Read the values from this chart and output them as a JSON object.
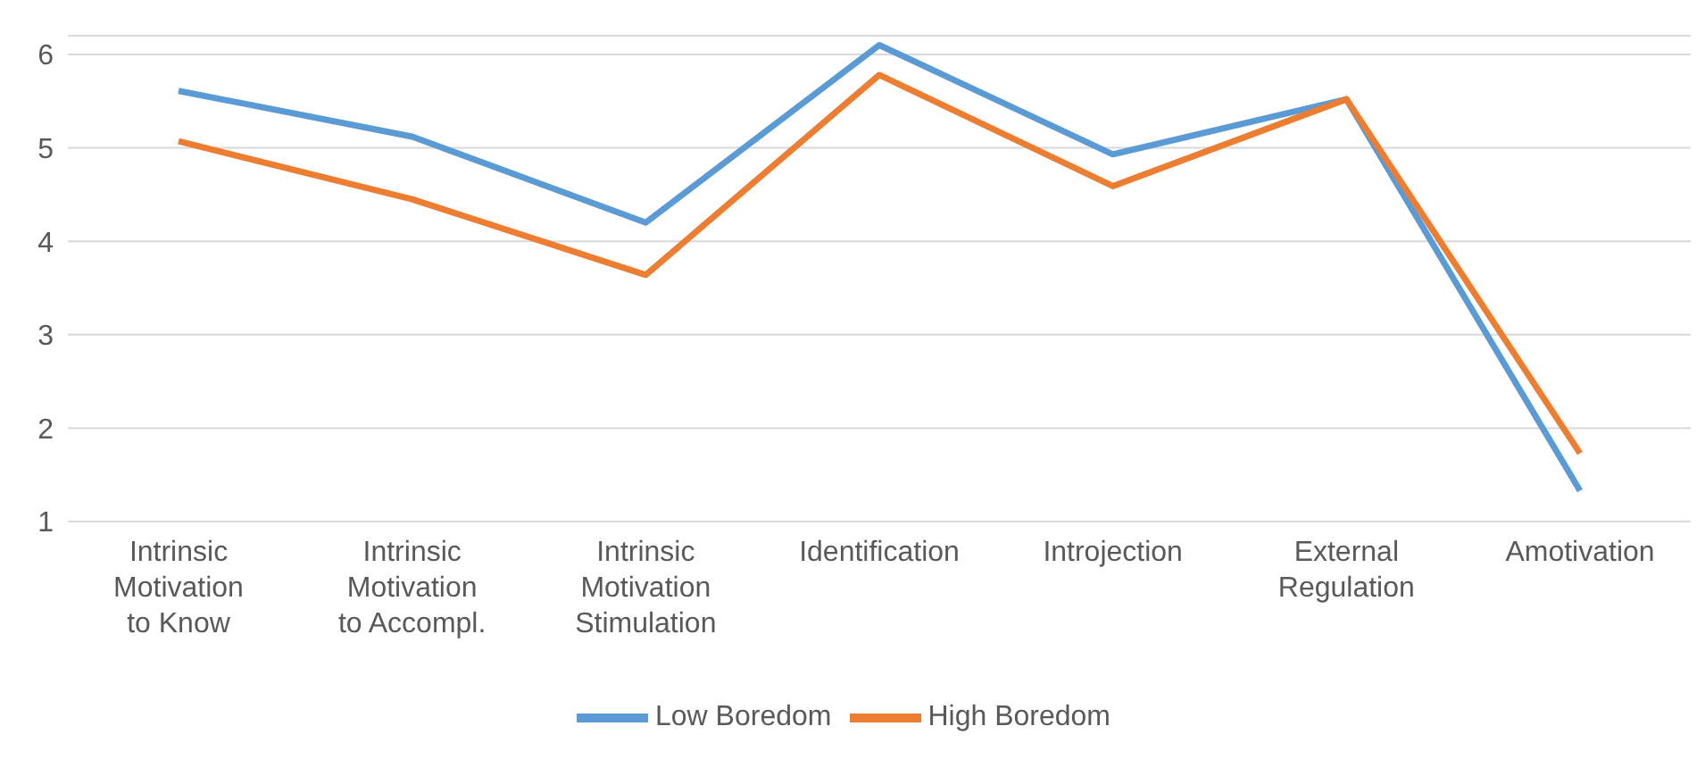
{
  "chart_data": {
    "type": "line",
    "categories": [
      "Intrinsic Motivation to Know",
      "Intrinsic Motivation to Accompl.",
      "Intrinsic Motivation Stimulation",
      "Identification",
      "Introjection",
      "External Regulation",
      "Amotivation"
    ],
    "series": [
      {
        "name": "Low Boredom",
        "color": "#5b9bd5",
        "values": [
          5.61,
          5.12,
          4.2,
          6.1,
          4.93,
          5.52,
          1.33
        ]
      },
      {
        "name": "High Boredom",
        "color": "#ed7d31",
        "values": [
          5.07,
          4.45,
          3.64,
          5.78,
          4.59,
          5.52,
          1.73
        ]
      }
    ],
    "ylim": [
      1,
      6.2
    ],
    "yticks": [
      1,
      2,
      3,
      4,
      5,
      6
    ],
    "grid": "y",
    "legend": "bottom",
    "marker": "none",
    "line_style": "solid"
  }
}
